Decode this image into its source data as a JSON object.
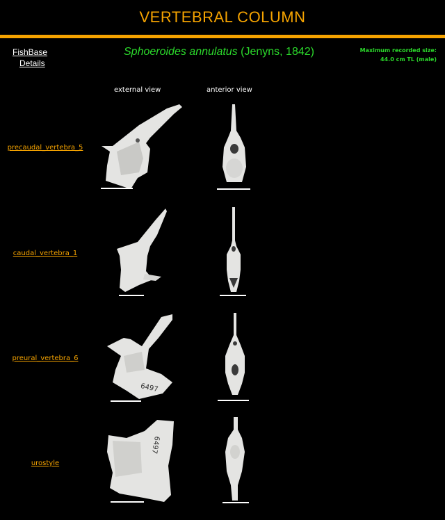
{
  "header": {
    "title": "VERTEBRAL COLUMN"
  },
  "nav": {
    "fishbase": "FishBase",
    "details": "Details"
  },
  "species": {
    "scientific_name": "Sphoeroides annulatus",
    "author": "(Jenyns, 1842)"
  },
  "max_size": {
    "label": "Maximum recorded size:",
    "value": "44.0 cm TL (male)"
  },
  "columns": {
    "external": "external view",
    "anterior": "anterior view"
  },
  "bones": [
    {
      "name": "precaudal_vertebra_5"
    },
    {
      "name": "caudal_vertebra_1"
    },
    {
      "name": "preural_vertebra_6"
    },
    {
      "name": "urostyle",
      "specimen_number": "6497"
    }
  ],
  "specimen_number": "6497",
  "colors": {
    "accent": "#f5a300",
    "species": "#2bd92b",
    "background": "#000000",
    "bone": "#e4e4e2"
  }
}
